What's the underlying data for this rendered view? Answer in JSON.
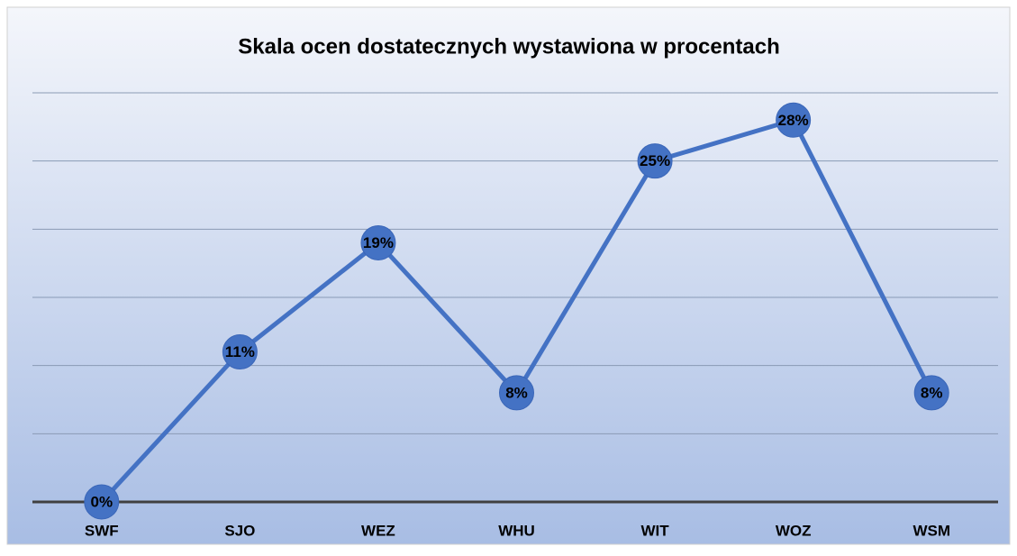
{
  "chart_data": {
    "type": "line",
    "title": "Skala ocen dostatecznych wystawiona w procentach",
    "categories": [
      "SWF",
      "SJO",
      "WEZ",
      "WHU",
      "WIT",
      "WOZ",
      "WSM"
    ],
    "series": [
      {
        "name": "Skala ocen dostatecznych",
        "color": "#4472c4",
        "values": [
          0,
          11,
          19,
          8,
          25,
          28,
          8
        ],
        "value_labels": [
          "0%",
          "11%",
          "19%",
          "8%",
          "25%",
          "28%",
          "8%"
        ]
      }
    ],
    "ylim": [
      0,
      30
    ],
    "yticks": [
      0,
      5,
      10,
      15,
      20,
      25,
      30
    ],
    "grid": true
  }
}
